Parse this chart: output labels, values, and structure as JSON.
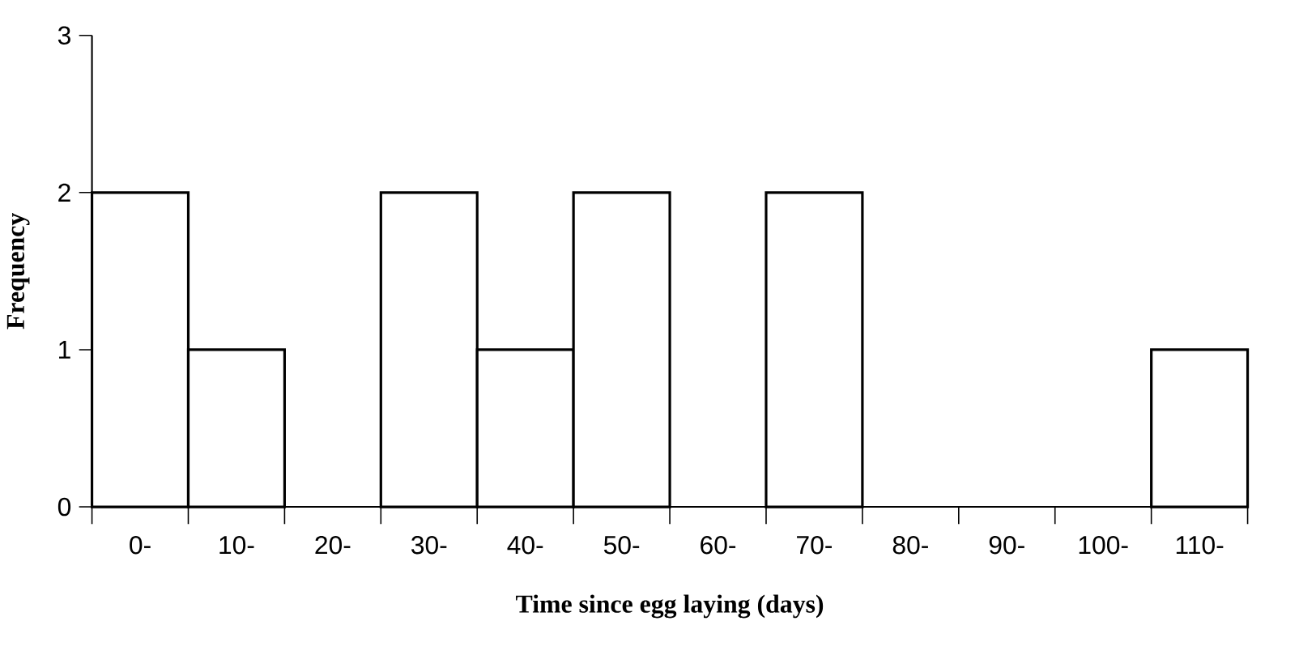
{
  "chart_data": {
    "type": "bar",
    "xlabel": "Time since egg laying (days)",
    "ylabel": "Frequency",
    "categories": [
      "0-",
      "10-",
      "20-",
      "30-",
      "40-",
      "50-",
      "60-",
      "70-",
      "80-",
      "90-",
      "100-",
      "110-"
    ],
    "values": [
      2,
      1,
      0,
      2,
      1,
      2,
      0,
      2,
      0,
      0,
      0,
      1
    ],
    "color": "#ffffff",
    "ylim": [
      0,
      3
    ],
    "yticks": [
      0,
      1,
      2,
      3
    ],
    "grid": false
  }
}
